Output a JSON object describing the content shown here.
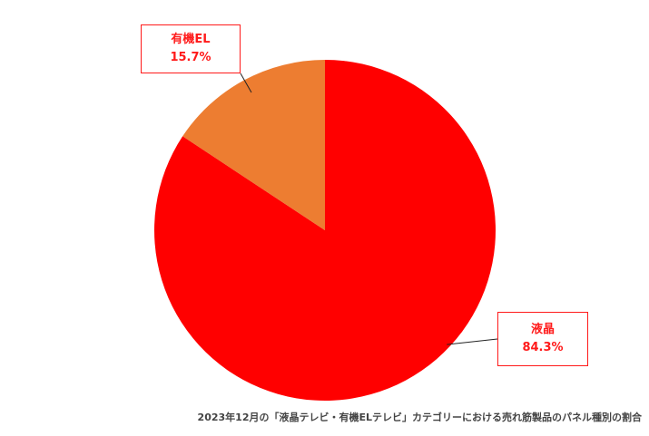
{
  "chart_data": {
    "type": "pie",
    "title": "",
    "categories": [
      "液晶",
      "有機EL"
    ],
    "values": [
      84.3,
      15.7
    ],
    "value_labels": [
      "84.3%",
      "15.7%"
    ],
    "colors": [
      "#ff0000",
      "#ed7d31"
    ],
    "start": "12 o'clock",
    "direction": "clockwise",
    "label_color": "#ff1a1a",
    "caption": "2023年12月の「液晶テレビ・有機ELテレビ」カテゴリーにおける売れ筋製品のパネル種別の割合"
  }
}
